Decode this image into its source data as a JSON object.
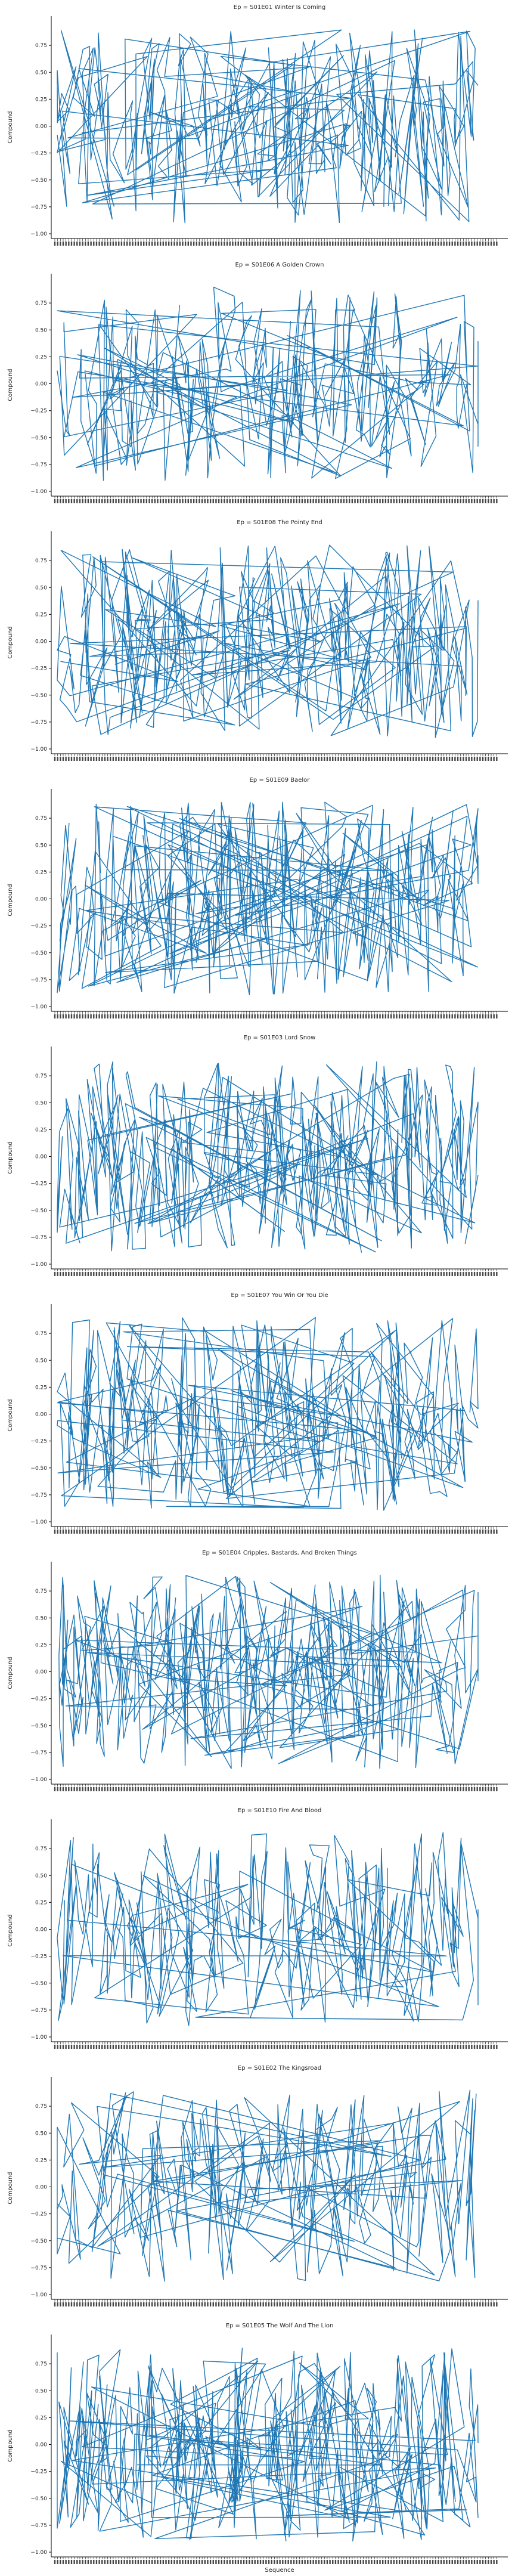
{
  "chart_data": {
    "type": "line",
    "facet_variable": "Ep",
    "xlabel": "Sequence",
    "ylabel": "Compound",
    "ylim": [
      -1.0,
      1.0
    ],
    "yticks": [
      -1.0,
      -0.75,
      -0.5,
      -0.25,
      0.0,
      0.25,
      0.5,
      0.75
    ],
    "ytick_labels": [
      "−1.00",
      "−0.75",
      "−0.50",
      "−0.25",
      "0.00",
      "0.25",
      "0.50",
      "0.75"
    ],
    "series_color": "#1f77b4",
    "grid": false,
    "legend": "none",
    "x_tick_labels_note": "dense overlapping sequence labels",
    "panels": [
      {
        "title": "Ep = S01E01 Winter Is Coming",
        "n_points": 340,
        "seed": 11
      },
      {
        "title": "Ep = S01E06 A Golden Crown",
        "n_points": 300,
        "seed": 23
      },
      {
        "title": "Ep = S01E08 The Pointy End",
        "n_points": 360,
        "seed": 37
      },
      {
        "title": "Ep = S01E09 Baelor",
        "n_points": 380,
        "seed": 41
      },
      {
        "title": "Ep = S01E03 Lord Snow",
        "n_points": 400,
        "seed": 53
      },
      {
        "title": "Ep = S01E07 You Win Or You Die",
        "n_points": 370,
        "seed": 67
      },
      {
        "title": "Ep = S01E04 Cripples, Bastards, And Broken Things",
        "n_points": 390,
        "seed": 71
      },
      {
        "title": "Ep = S01E10 Fire And Blood",
        "n_points": 300,
        "seed": 83
      },
      {
        "title": "Ep = S01E02 The Kingsroad",
        "n_points": 280,
        "seed": 97
      },
      {
        "title": "Ep = S01E05 The Wolf And The Lion",
        "n_points": 420,
        "seed": 101
      }
    ]
  }
}
